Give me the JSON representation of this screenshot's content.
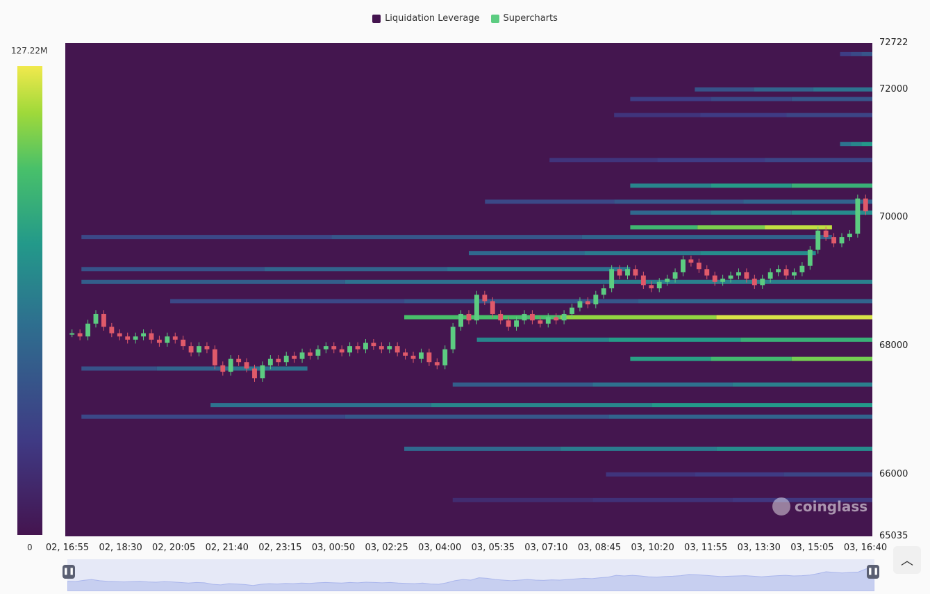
{
  "legend": {
    "items": [
      {
        "label": "Liquidation Leverage",
        "color": "#44144f"
      },
      {
        "label": "Supercharts",
        "color": "#5ccc81"
      }
    ]
  },
  "color_scale": {
    "max_label": "127.22M",
    "min_label": "0",
    "colors": [
      "#44144f",
      "#3f3a84",
      "#2e6f8f",
      "#23998a",
      "#48c06a",
      "#9fd93a",
      "#f1e94d"
    ]
  },
  "watermark": {
    "text": "coinglass"
  },
  "controls": {
    "scroll_up_icon": "chevron-up-icon",
    "handle_icon": "pause-bars-icon"
  },
  "chart_data": {
    "type": "heatmap",
    "y_min": 65035,
    "y_max": 72722,
    "y_ticks": [
      "72722",
      "72000",
      "70000",
      "68000",
      "66000",
      "65035"
    ],
    "x_ticks": [
      "02, 16:55",
      "02, 18:30",
      "02, 20:05",
      "02, 21:40",
      "02, 23:15",
      "03, 00:50",
      "03, 02:25",
      "03, 04:00",
      "03, 05:35",
      "03, 07:10",
      "03, 08:45",
      "03, 10:20",
      "03, 11:55",
      "03, 13:30",
      "03, 15:05",
      "03, 16:40"
    ],
    "price_series": {
      "name": "Supercharts",
      "values": [
        68200,
        68150,
        68350,
        68500,
        68300,
        68200,
        68150,
        68100,
        68150,
        68200,
        68100,
        68050,
        68150,
        68100,
        68000,
        67900,
        68000,
        67950,
        67700,
        67600,
        67800,
        67750,
        67650,
        67500,
        67700,
        67800,
        67750,
        67850,
        67800,
        67900,
        67850,
        67950,
        68000,
        67950,
        67900,
        68000,
        67950,
        68050,
        68000,
        67950,
        68000,
        67900,
        67850,
        67800,
        67900,
        67750,
        67700,
        67950,
        68300,
        68500,
        68400,
        68800,
        68700,
        68500,
        68400,
        68300,
        68400,
        68500,
        68400,
        68350,
        68450,
        68400,
        68500,
        68600,
        68700,
        68650,
        68800,
        68900,
        69200,
        69100,
        69200,
        69100,
        68950,
        68900,
        69000,
        69050,
        69150,
        69350,
        69300,
        69200,
        69100,
        69000,
        69050,
        69100,
        69150,
        69050,
        68950,
        69050,
        69150,
        69200,
        69100,
        69150,
        69250,
        69500,
        69800,
        69700,
        69600,
        69700,
        69750,
        70300,
        70100
      ]
    },
    "liquidation_bands": [
      {
        "price": 72550,
        "start": 0.96,
        "end": 1.0,
        "intensity": 0.25
      },
      {
        "price": 72000,
        "start": 0.78,
        "end": 1.0,
        "intensity": 0.35
      },
      {
        "price": 71850,
        "start": 0.7,
        "end": 1.0,
        "intensity": 0.25
      },
      {
        "price": 71600,
        "start": 0.68,
        "end": 1.0,
        "intensity": 0.2
      },
      {
        "price": 71150,
        "start": 0.96,
        "end": 1.0,
        "intensity": 0.5
      },
      {
        "price": 70900,
        "start": 0.6,
        "end": 1.0,
        "intensity": 0.2
      },
      {
        "price": 70500,
        "start": 0.7,
        "end": 1.0,
        "intensity": 0.6
      },
      {
        "price": 70250,
        "start": 0.52,
        "end": 1.0,
        "intensity": 0.3
      },
      {
        "price": 70080,
        "start": 0.7,
        "end": 1.0,
        "intensity": 0.45
      },
      {
        "price": 69850,
        "start": 0.7,
        "end": 0.95,
        "intensity": 0.9
      },
      {
        "price": 69700,
        "start": 0.02,
        "end": 0.95,
        "intensity": 0.3
      },
      {
        "price": 69450,
        "start": 0.5,
        "end": 0.93,
        "intensity": 0.45
      },
      {
        "price": 69200,
        "start": 0.02,
        "end": 0.7,
        "intensity": 0.35
      },
      {
        "price": 69000,
        "start": 0.02,
        "end": 1.0,
        "intensity": 0.4
      },
      {
        "price": 68700,
        "start": 0.13,
        "end": 1.0,
        "intensity": 0.3
      },
      {
        "price": 68450,
        "start": 0.42,
        "end": 1.0,
        "intensity": 0.95
      },
      {
        "price": 68100,
        "start": 0.51,
        "end": 1.0,
        "intensity": 0.6
      },
      {
        "price": 67800,
        "start": 0.7,
        "end": 1.0,
        "intensity": 0.75
      },
      {
        "price": 67650,
        "start": 0.02,
        "end": 0.3,
        "intensity": 0.35
      },
      {
        "price": 67400,
        "start": 0.48,
        "end": 1.0,
        "intensity": 0.4
      },
      {
        "price": 67080,
        "start": 0.18,
        "end": 1.0,
        "intensity": 0.5
      },
      {
        "price": 66900,
        "start": 0.02,
        "end": 1.0,
        "intensity": 0.3
      },
      {
        "price": 66400,
        "start": 0.42,
        "end": 1.0,
        "intensity": 0.45
      },
      {
        "price": 66000,
        "start": 0.67,
        "end": 1.0,
        "intensity": 0.2
      },
      {
        "price": 65600,
        "start": 0.48,
        "end": 1.0,
        "intensity": 0.15
      }
    ]
  }
}
